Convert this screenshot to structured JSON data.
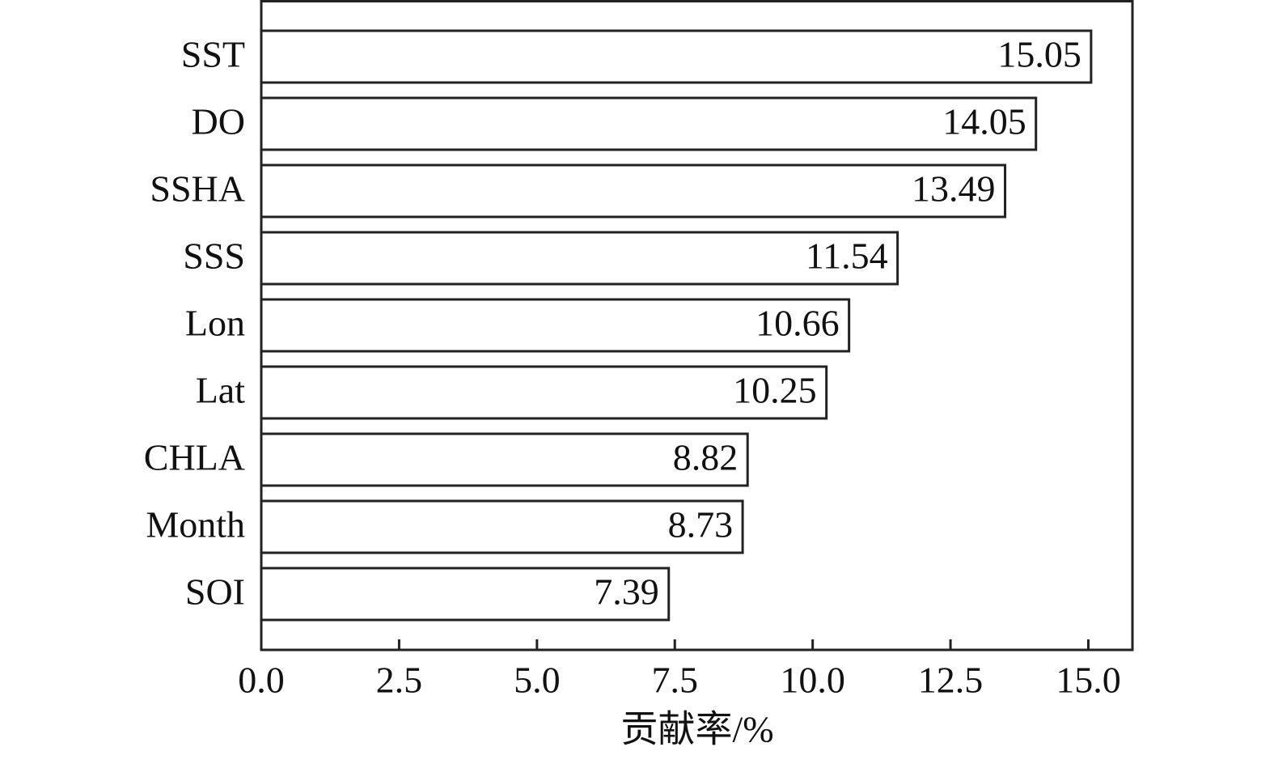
{
  "chart_data": {
    "type": "bar",
    "orientation": "horizontal",
    "x_label": "贡献率/%",
    "categories": [
      "SST",
      "DO",
      "SSHA",
      "SSS",
      "Lon",
      "Lat",
      "CHLA",
      "Month",
      "SOI"
    ],
    "values": [
      15.05,
      14.05,
      13.49,
      11.54,
      10.66,
      10.25,
      8.82,
      8.73,
      7.39
    ],
    "color": "#ffffff",
    "edge_color": "#222222",
    "xlim": [
      0,
      15.8
    ],
    "xticks": [
      {
        "value": 0,
        "label": "0.0"
      },
      2.5,
      {
        "value": 5,
        "label": "5.0"
      },
      7.5,
      {
        "value": 10,
        "label": "10.0"
      },
      12.5,
      {
        "value": 15,
        "label": "15.0"
      }
    ],
    "grid": false
  }
}
